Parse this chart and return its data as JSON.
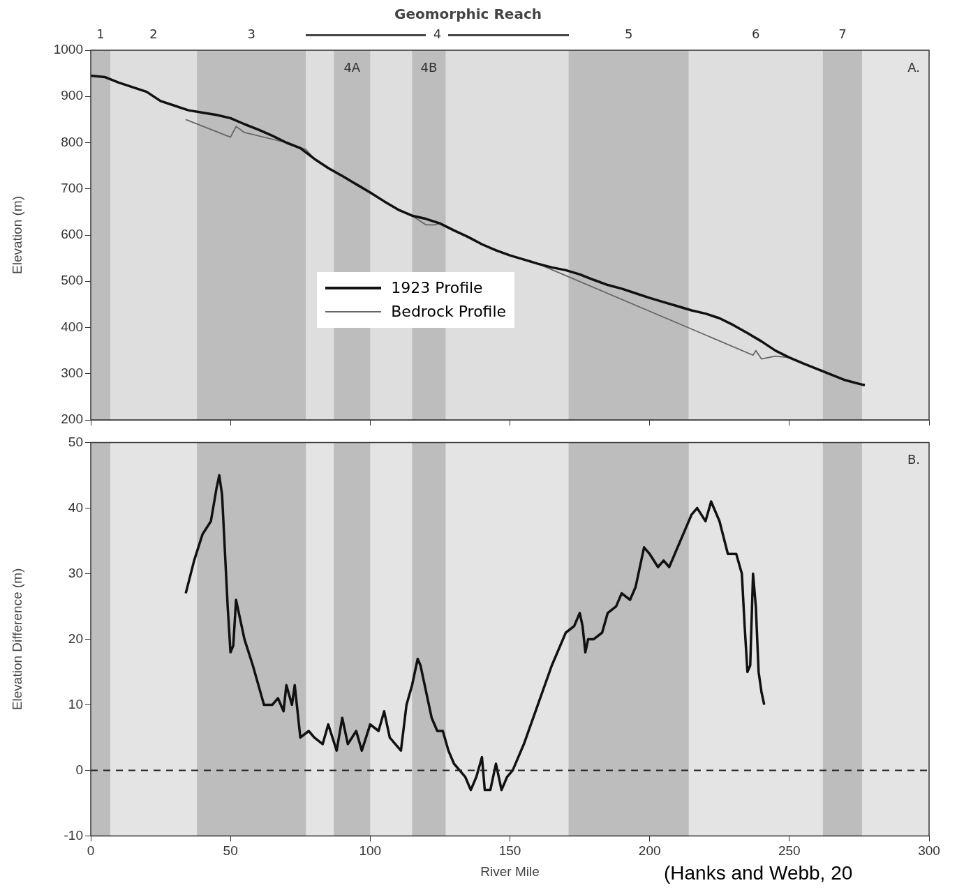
{
  "chart_data": [
    {
      "type": "line",
      "title": "Geomorphic Reach",
      "ylabel": "Elevation (m)",
      "xlim": [
        0,
        300
      ],
      "ylim": [
        200,
        1000
      ],
      "yticks": [
        200,
        300,
        400,
        500,
        600,
        700,
        800,
        900,
        1000
      ],
      "xticks": [
        {
          "value": 0,
          "label": null
        },
        {
          "value": 50,
          "label": null
        },
        {
          "value": 100,
          "label": null
        },
        {
          "value": 150,
          "label": null
        },
        {
          "value": 200,
          "label": null
        },
        {
          "value": 250,
          "label": null
        },
        {
          "value": 300,
          "label": null
        }
      ],
      "tick_labels": "y",
      "legend": "center",
      "series": [
        {
          "name": "1923 Profile",
          "color": "#111111",
          "x": [
            0,
            5,
            10,
            20,
            25,
            30,
            35,
            40,
            45,
            50,
            55,
            60,
            65,
            70,
            75,
            80,
            85,
            90,
            95,
            100,
            105,
            110,
            115,
            120,
            125,
            130,
            135,
            140,
            145,
            150,
            155,
            160,
            165,
            170,
            175,
            180,
            185,
            190,
            195,
            200,
            205,
            210,
            215,
            220,
            225,
            230,
            235,
            240,
            245,
            250,
            255,
            260,
            265,
            270,
            275,
            277
          ],
          "values": [
            945,
            942,
            930,
            910,
            890,
            880,
            870,
            865,
            860,
            853,
            840,
            828,
            815,
            800,
            788,
            765,
            745,
            728,
            710,
            692,
            673,
            655,
            642,
            635,
            625,
            610,
            596,
            580,
            567,
            556,
            547,
            538,
            530,
            524,
            515,
            503,
            492,
            484,
            474,
            464,
            455,
            446,
            437,
            430,
            420,
            405,
            388,
            370,
            350,
            335,
            322,
            310,
            298,
            286,
            278,
            275
          ]
        },
        {
          "name": "Bedrock Profile",
          "color": "#666666",
          "x": [
            34,
            50,
            52,
            55,
            70,
            77,
            80,
            90,
            100,
            110,
            115,
            120,
            123,
            125,
            130,
            140,
            150,
            160,
            237,
            238,
            240,
            245,
            250,
            260,
            270,
            277
          ],
          "values": [
            850,
            812,
            835,
            822,
            800,
            785,
            765,
            728,
            692,
            655,
            642,
            622,
            622,
            625,
            610,
            580,
            556,
            538,
            340,
            350,
            332,
            338,
            335,
            310,
            286,
            275
          ]
        }
      ],
      "bands": [
        {
          "axis": "x",
          "from": 0,
          "to": 7,
          "label": "1",
          "color": "#bdbdbd"
        },
        {
          "axis": "x",
          "from": 7,
          "to": 38,
          "label": "2",
          "color": "#dedede"
        },
        {
          "axis": "x",
          "from": 38,
          "to": 77,
          "label": "3",
          "color": "#bdbdbd"
        },
        {
          "axis": "x",
          "from": 77,
          "to": 171,
          "label": "4",
          "color": "#dedede"
        },
        {
          "axis": "x",
          "from": 87,
          "to": 100,
          "label": "4A",
          "color": "#bdbdbd"
        },
        {
          "axis": "x",
          "from": 115,
          "to": 127,
          "label": "4B",
          "color": "#bdbdbd"
        },
        {
          "axis": "x",
          "from": 171,
          "to": 214,
          "label": "5",
          "color": "#bdbdbd"
        },
        {
          "axis": "x",
          "from": 214,
          "to": 262,
          "label": "6",
          "color": "#dedede"
        },
        {
          "axis": "x",
          "from": 262,
          "to": 276,
          "label": "7",
          "color": "#bdbdbd"
        }
      ],
      "annotations": [
        "A."
      ]
    },
    {
      "type": "line",
      "xlabel": "River Mile",
      "ylabel": "Elevation Difference (m)",
      "xlim": [
        0,
        300
      ],
      "ylim": [
        -10,
        50
      ],
      "xticks": [
        0,
        50,
        100,
        150,
        200,
        250,
        300
      ],
      "yticks": [
        -10,
        0,
        10,
        20,
        30,
        40,
        50
      ],
      "series": [
        {
          "color": "#111111",
          "x": [
            34,
            37,
            40,
            43,
            45,
            46,
            47,
            49,
            50,
            51,
            52,
            53,
            55,
            58,
            60,
            62,
            65,
            67,
            69,
            70,
            72,
            73,
            75,
            78,
            80,
            83,
            85,
            88,
            90,
            92,
            95,
            97,
            100,
            103,
            105,
            107,
            109,
            111,
            113,
            115,
            117,
            118,
            120,
            122,
            124,
            126,
            128,
            130,
            132,
            134,
            136,
            138,
            140,
            141,
            143,
            145,
            147,
            149,
            151,
            155,
            160,
            165,
            170,
            173,
            175,
            176,
            177,
            178,
            180,
            183,
            185,
            188,
            190,
            193,
            195,
            198,
            200,
            203,
            205,
            207,
            210,
            213,
            215,
            217,
            220,
            222,
            225,
            228,
            231,
            233,
            234,
            235,
            236,
            237,
            238,
            239,
            240,
            241
          ],
          "values": [
            27,
            32,
            36,
            38,
            43,
            45,
            42,
            25,
            18,
            19,
            26,
            24,
            20,
            16,
            13,
            10,
            10,
            11,
            9,
            13,
            10,
            13,
            5,
            6,
            5,
            4,
            7,
            3,
            8,
            4,
            6,
            3,
            7,
            6,
            9,
            5,
            4,
            3,
            10,
            13,
            17,
            16,
            12,
            8,
            6,
            6,
            3,
            1,
            0,
            -1,
            -3,
            -1,
            2,
            -3,
            -3,
            1,
            -3,
            -1,
            0,
            4,
            10,
            16,
            21,
            22,
            24,
            22,
            18,
            20,
            20,
            21,
            24,
            25,
            27,
            26,
            28,
            34,
            33,
            31,
            32,
            31,
            34,
            37,
            39,
            40,
            38,
            41,
            38,
            33,
            33,
            30,
            22,
            15,
            16,
            30,
            25,
            15,
            12,
            10
          ]
        }
      ],
      "bands": [
        {
          "axis": "x",
          "from": 0,
          "to": 7,
          "color": "#bdbdbd"
        },
        {
          "axis": "x",
          "from": 38,
          "to": 77,
          "color": "#bdbdbd"
        },
        {
          "axis": "x",
          "from": 87,
          "to": 100,
          "color": "#bdbdbd"
        },
        {
          "axis": "x",
          "from": 115,
          "to": 127,
          "color": "#bdbdbd"
        },
        {
          "axis": "x",
          "from": 171,
          "to": 214,
          "color": "#bdbdbd"
        },
        {
          "axis": "x",
          "from": 262,
          "to": 276,
          "color": "#bdbdbd"
        }
      ],
      "ref_lines": [
        {
          "axis": "y",
          "value": 0,
          "color": "#222222",
          "line_style": "dashed"
        }
      ],
      "annotations": [
        "B.",
        "(Hanks and Webb, 20"
      ]
    }
  ]
}
